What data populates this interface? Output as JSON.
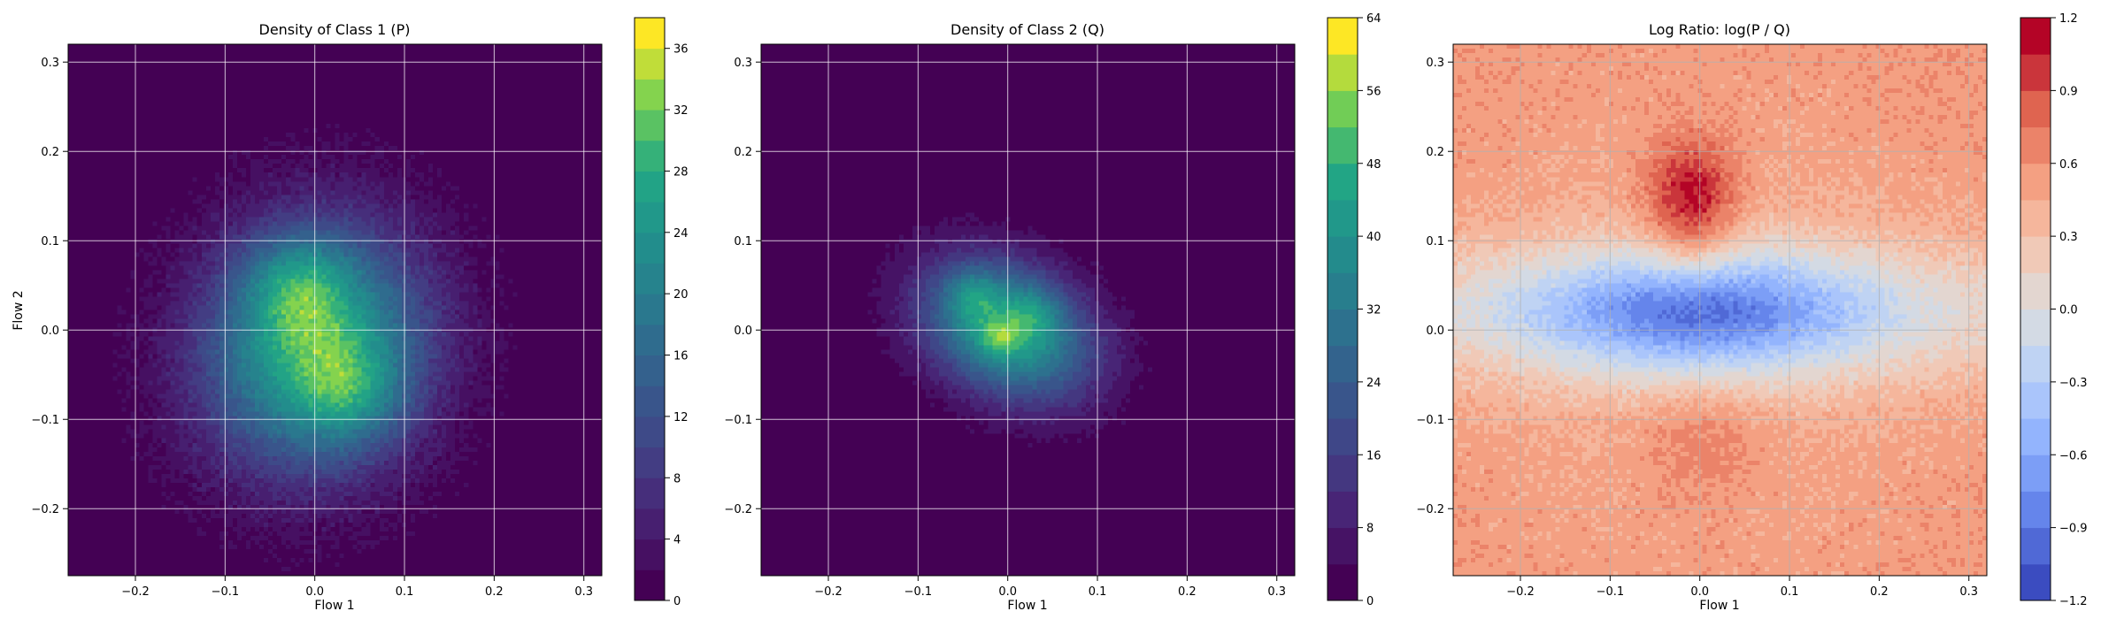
{
  "chart_data": [
    {
      "type": "heatmap",
      "subtype": "filled-contour",
      "title": "Density of Class 1 (P)",
      "xlabel": "Flow 1",
      "ylabel": "Flow 2",
      "xlim": [
        -0.275,
        0.32
      ],
      "ylim": [
        -0.275,
        0.32
      ],
      "xticks": [
        -0.2,
        -0.1,
        0.0,
        0.1,
        0.2,
        0.3
      ],
      "xtick_labels": [
        "−0.2",
        "−0.1",
        "0.0",
        "0.1",
        "0.2",
        "0.3"
      ],
      "yticks": [
        -0.2,
        -0.1,
        0.0,
        0.1,
        0.2,
        0.3
      ],
      "ytick_labels": [
        "−0.2",
        "−0.1",
        "0.0",
        "0.1",
        "0.2",
        "0.3"
      ],
      "grid": true,
      "colormap": "viridis",
      "colorbar": {
        "range": [
          0,
          38
        ],
        "ticks": [
          0,
          4,
          8,
          12,
          16,
          20,
          24,
          28,
          32,
          36
        ],
        "tick_labels": [
          "0",
          "4",
          "8",
          "12",
          "16",
          "20",
          "24",
          "28",
          "32",
          "36"
        ],
        "levels": [
          0,
          2,
          4,
          6,
          8,
          10,
          12,
          14,
          16,
          18,
          20,
          22,
          24,
          26,
          28,
          30,
          32,
          34,
          36,
          38
        ]
      },
      "field": {
        "peak": 37,
        "center": [
          0.0,
          -0.02
        ],
        "spread": [
          0.085,
          0.095
        ],
        "angle_deg": -20,
        "bumps": [
          {
            "center": [
              -0.02,
              0.05
            ],
            "amp": 0.35,
            "spread": 0.04
          },
          {
            "center": [
              0.04,
              -0.07
            ],
            "amp": 0.3,
            "spread": 0.04
          }
        ]
      }
    },
    {
      "type": "heatmap",
      "subtype": "filled-contour",
      "title": "Density of Class 2 (Q)",
      "xlabel": "Flow 1",
      "ylabel": "",
      "xlim": [
        -0.275,
        0.32
      ],
      "ylim": [
        -0.275,
        0.32
      ],
      "xticks": [
        -0.2,
        -0.1,
        0.0,
        0.1,
        0.2,
        0.3
      ],
      "xtick_labels": [
        "−0.2",
        "−0.1",
        "0.0",
        "0.1",
        "0.2",
        "0.3"
      ],
      "yticks": [
        -0.2,
        -0.1,
        0.0,
        0.1,
        0.2,
        0.3
      ],
      "ytick_labels": [
        "−0.2",
        "−0.1",
        "0.0",
        "0.1",
        "0.2",
        "0.3"
      ],
      "grid": true,
      "colormap": "viridis",
      "colorbar": {
        "range": [
          0,
          64
        ],
        "ticks": [
          0,
          8,
          16,
          24,
          32,
          40,
          48,
          56,
          64
        ],
        "tick_labels": [
          "0",
          "8",
          "16",
          "24",
          "32",
          "40",
          "48",
          "56",
          "64"
        ],
        "levels": [
          0,
          4,
          8,
          12,
          16,
          20,
          24,
          28,
          32,
          36,
          40,
          44,
          48,
          52,
          56,
          60,
          64
        ]
      },
      "field": {
        "peak": 60,
        "center": [
          0.0,
          0.0
        ],
        "spread": [
          0.07,
          0.05
        ],
        "angle_deg": -28,
        "bumps": [
          {
            "center": [
              -0.04,
              0.04
            ],
            "amp": 0.25,
            "spread": 0.02
          },
          {
            "center": [
              0.03,
              0.02
            ],
            "amp": 0.2,
            "spread": 0.02
          },
          {
            "center": [
              -0.01,
              -0.01
            ],
            "amp": 0.25,
            "spread": 0.015
          }
        ]
      }
    },
    {
      "type": "heatmap",
      "subtype": "filled-contour",
      "title": "Log Ratio: log(P / Q)",
      "xlabel": "Flow 1",
      "ylabel": "",
      "xlim": [
        -0.275,
        0.32
      ],
      "ylim": [
        -0.275,
        0.32
      ],
      "xticks": [
        -0.2,
        -0.1,
        0.0,
        0.1,
        0.2,
        0.3
      ],
      "xtick_labels": [
        "−0.2",
        "−0.1",
        "0.0",
        "0.1",
        "0.2",
        "0.3"
      ],
      "yticks": [
        -0.2,
        -0.1,
        0.0,
        0.1,
        0.2,
        0.3
      ],
      "ytick_labels": [
        "−0.2",
        "−0.1",
        "0.0",
        "0.1",
        "0.2",
        "0.3"
      ],
      "grid": true,
      "colormap": "coolwarm",
      "colorbar": {
        "range": [
          -1.2,
          1.2
        ],
        "ticks": [
          -1.2,
          -0.9,
          -0.6,
          -0.3,
          0.0,
          0.3,
          0.6,
          0.9,
          1.2
        ],
        "tick_labels": [
          "−1.2",
          "−0.9",
          "−0.6",
          "−0.3",
          "0.0",
          "0.3",
          "0.6",
          "0.9",
          "1.2"
        ],
        "levels": [
          -1.2,
          -1.05,
          -0.9,
          -0.75,
          -0.6,
          -0.45,
          -0.3,
          -0.15,
          0.0,
          0.15,
          0.3,
          0.45,
          0.6,
          0.75,
          0.9,
          1.05,
          1.2
        ]
      }
    }
  ]
}
